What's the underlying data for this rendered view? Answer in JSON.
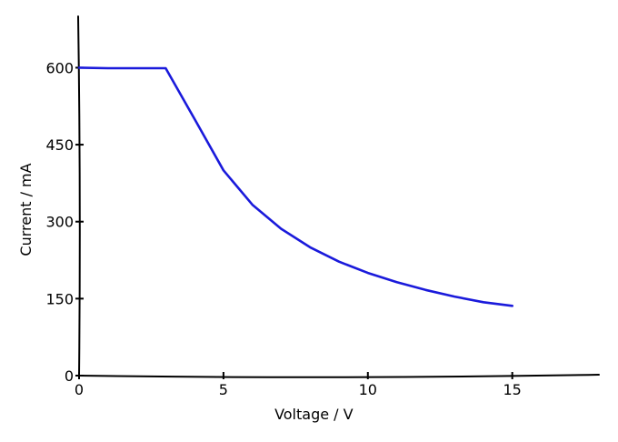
{
  "chart_data": {
    "type": "line",
    "title": "",
    "xlabel": "Voltage / V",
    "ylabel": "Current / mA",
    "xlim": [
      0,
      18
    ],
    "ylim": [
      0,
      700
    ],
    "x_ticks": [
      0,
      5,
      10,
      15
    ],
    "y_ticks": [
      0,
      150,
      300,
      450,
      600
    ],
    "x_tick_labels": [
      "0",
      "5",
      "10",
      "15"
    ],
    "y_tick_labels": [
      "0",
      "150",
      "300",
      "450",
      "600"
    ],
    "grid": false,
    "legend": "none",
    "series": [
      {
        "color": "#1a1adb",
        "x": [
          0,
          1,
          2,
          3,
          4,
          5,
          6,
          7,
          8,
          9,
          10,
          11,
          12,
          13,
          14,
          15
        ],
        "y": [
          600,
          599,
          599,
          599,
          500,
          400,
          333,
          286,
          250,
          222,
          200,
          182,
          167,
          154,
          143,
          136
        ]
      }
    ]
  }
}
